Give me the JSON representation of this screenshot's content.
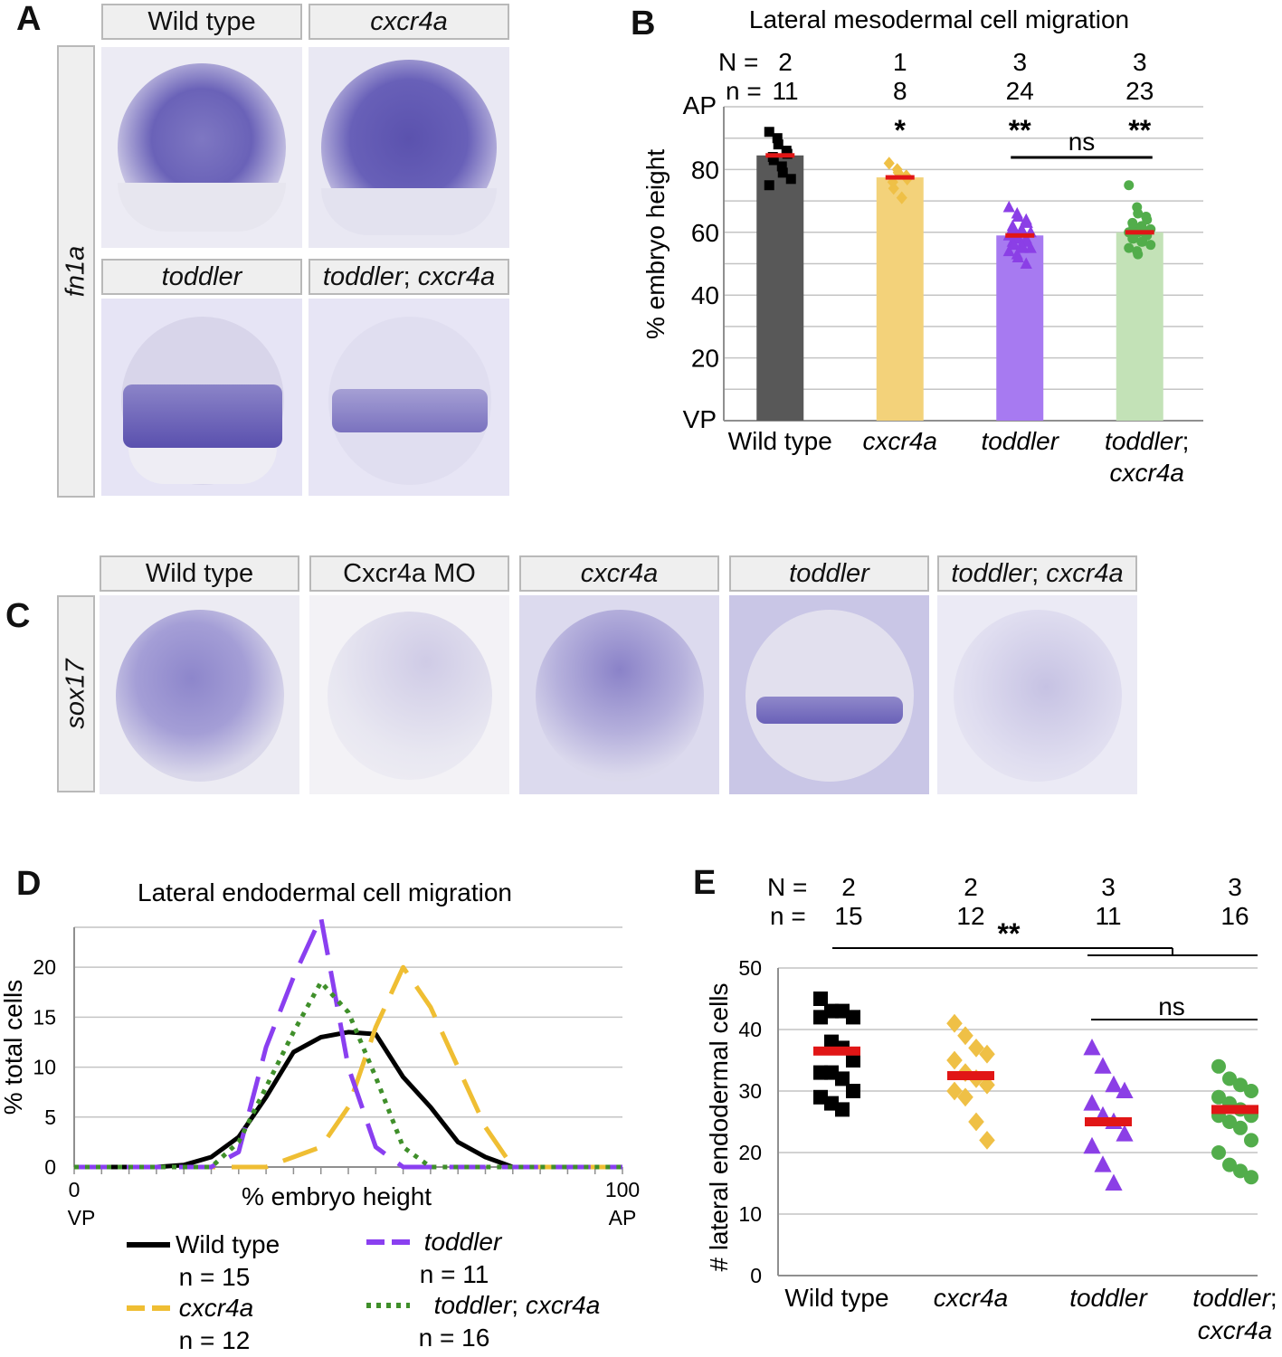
{
  "panels": {
    "A": "A",
    "B": "B",
    "C": "C",
    "D": "D",
    "E": "E"
  },
  "panel_a": {
    "probe": "fn1a",
    "headers": [
      {
        "name": "Wild type",
        "italic": false
      },
      {
        "name": "cxcr4a",
        "italic": true
      },
      {
        "name": "toddler",
        "italic": true
      },
      {
        "name": "toddler; cxcr4a",
        "italic": "partial"
      }
    ]
  },
  "panel_c": {
    "probe": "sox17",
    "headers": [
      {
        "name": "Wild type",
        "italic": false
      },
      {
        "name": "Cxcr4a MO",
        "italic": false
      },
      {
        "name": "cxcr4a",
        "italic": true
      },
      {
        "name": "toddler",
        "italic": true
      },
      {
        "name": "toddler; cxcr4a",
        "italic": "partial"
      }
    ]
  },
  "chart_data": [
    {
      "panel": "B",
      "type": "bar",
      "title": "Lateral mesodermal cell migration",
      "ylabel": "% embryo height",
      "y_end_labels": {
        "top": "AP",
        "bottom": "VP"
      },
      "ylim": [
        0,
        100
      ],
      "yticks": [
        20,
        40,
        60,
        80
      ],
      "grid": true,
      "N_label": "N =",
      "n_label": "n =",
      "categories": [
        "Wild type",
        "cxcr4a",
        "toddler",
        "toddler; cxcr4a"
      ],
      "N": [
        2,
        1,
        3,
        3
      ],
      "n": [
        11,
        8,
        24,
        23
      ],
      "values": [
        84.5,
        77.5,
        59,
        60
      ],
      "bar_colors": [
        "#585858",
        "#f3d27a",
        "#a77af1",
        "#c3e2b7"
      ],
      "point_colors": [
        "#000000",
        "#efc046",
        "#8b3fe6",
        "#52ad4b"
      ],
      "markers": [
        "square",
        "diamond",
        "triangle",
        "circle"
      ],
      "points": [
        [
          92,
          90,
          88,
          86,
          85,
          84,
          83,
          81,
          79,
          77,
          75
        ],
        [
          82,
          80,
          79,
          78,
          77,
          76,
          74,
          71
        ],
        [
          68,
          66,
          65,
          64,
          63,
          62,
          61,
          61,
          60,
          60,
          59,
          59,
          58,
          58,
          57,
          57,
          56,
          56,
          55,
          55,
          54,
          53,
          52,
          50
        ],
        [
          75,
          68,
          66,
          65,
          64,
          63,
          62,
          62,
          61,
          61,
          60,
          60,
          60,
          59,
          59,
          58,
          58,
          57,
          57,
          56,
          55,
          54,
          53
        ]
      ],
      "significance": [
        "",
        "*",
        "**",
        "**"
      ],
      "ns_label": "ns"
    },
    {
      "panel": "D",
      "type": "line",
      "title": "Lateral endodermal cell migration",
      "xlabel": "% embryo height",
      "ylabel": "% total cells",
      "x_end_labels": {
        "left_value": "0",
        "left": "VP",
        "right_value": "100",
        "right": "AP"
      },
      "xlim": [
        0,
        100
      ],
      "ylim": [
        0,
        24
      ],
      "yticks": [
        0,
        5,
        10,
        15,
        20
      ],
      "grid": true,
      "x": [
        0,
        5,
        10,
        15,
        20,
        25,
        30,
        35,
        40,
        45,
        50,
        55,
        60,
        65,
        70,
        75,
        80,
        85,
        90,
        95,
        100
      ],
      "series": [
        {
          "name": "Wild type",
          "n": "n = 15",
          "color": "#000000",
          "style": "solid",
          "values": [
            0,
            0,
            0,
            0,
            0.2,
            1,
            3,
            7,
            11.5,
            13,
            13.5,
            13.3,
            9,
            6,
            2.5,
            1,
            0,
            0,
            0,
            0,
            0
          ]
        },
        {
          "name": "cxcr4a",
          "n": "n = 12",
          "color": "#efbe33",
          "style": "dashed",
          "values": [
            0,
            0,
            0,
            0,
            0,
            0,
            0,
            0,
            1,
            2,
            6,
            14,
            20,
            16,
            10,
            4,
            0,
            0,
            0,
            0,
            0
          ]
        },
        {
          "name": "toddler",
          "n": "n = 11",
          "color": "#8a3ff0",
          "style": "dashed",
          "values": [
            0,
            0,
            0,
            0,
            0,
            0,
            1.5,
            12,
            19,
            25,
            10,
            2,
            0,
            0,
            0,
            0,
            0,
            0,
            0,
            0,
            0
          ]
        },
        {
          "name": "toddler; cxcr4a",
          "n": "n = 16",
          "color": "#3f8f2a",
          "style": "dotted",
          "values": [
            0,
            0,
            0,
            0,
            0,
            0,
            2.5,
            8,
            13.5,
            18.5,
            15.5,
            9,
            2,
            0,
            0,
            0,
            0,
            0,
            0,
            0,
            0
          ]
        }
      ]
    },
    {
      "panel": "E",
      "type": "scatter",
      "ylabel": "# lateral endodermal cells",
      "ylim": [
        0,
        50
      ],
      "yticks": [
        0,
        10,
        20,
        30,
        40,
        50
      ],
      "grid": true,
      "N_label": "N =",
      "n_label": "n =",
      "categories": [
        "Wild type",
        "cxcr4a",
        "toddler",
        "toddler; cxcr4a"
      ],
      "N": [
        2,
        2,
        3,
        3
      ],
      "n": [
        15,
        12,
        11,
        16
      ],
      "means": [
        36.5,
        32.5,
        25,
        27
      ],
      "colors": [
        "#000000",
        "#efc046",
        "#8b3fe6",
        "#52ad4b"
      ],
      "markers": [
        "square",
        "diamond",
        "triangle",
        "circle"
      ],
      "points": [
        [
          45,
          43,
          43,
          42,
          42,
          38,
          37,
          35,
          33,
          33,
          32,
          30,
          29,
          28,
          27
        ],
        [
          41,
          39,
          37,
          36,
          35,
          33,
          32,
          31,
          30,
          29,
          25,
          22
        ],
        [
          37,
          34,
          31,
          30,
          28,
          26,
          25,
          23,
          21,
          18,
          15
        ],
        [
          34,
          32,
          31,
          30,
          29,
          28,
          27,
          26,
          26,
          25,
          24,
          22,
          20,
          18,
          17,
          16
        ]
      ],
      "significance": {
        "star_label": "**",
        "ns_label": "ns"
      }
    }
  ]
}
